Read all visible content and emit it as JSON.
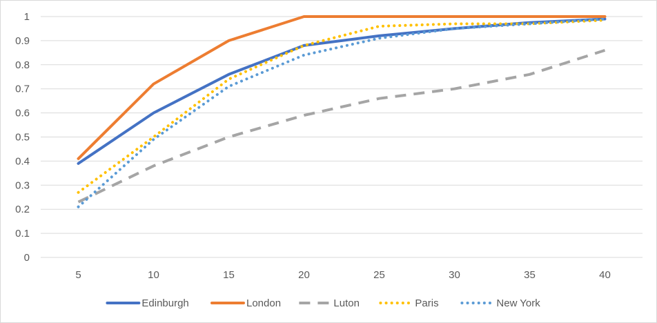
{
  "chart_data": {
    "type": "line",
    "title": "",
    "xlabel": "",
    "ylabel": "",
    "x": [
      5,
      10,
      15,
      20,
      25,
      30,
      35,
      40
    ],
    "ylim": [
      0,
      1
    ],
    "yticks": [
      "0",
      "0.1",
      "0.2",
      "0.3",
      "0.4",
      "0.5",
      "0.6",
      "0.7",
      "0.8",
      "0.9",
      "1"
    ],
    "xticks": [
      "5",
      "10",
      "15",
      "20",
      "25",
      "30",
      "35",
      "40"
    ],
    "grid": true,
    "legend_position": "bottom",
    "series": [
      {
        "name": "Edinburgh",
        "color": "#4472c4",
        "style": "solid",
        "values": [
          0.39,
          0.6,
          0.76,
          0.88,
          0.92,
          0.95,
          0.975,
          0.99
        ]
      },
      {
        "name": "London",
        "color": "#ed7d31",
        "style": "solid",
        "values": [
          0.41,
          0.72,
          0.9,
          1.0,
          1.0,
          1.0,
          1.0,
          1.0
        ]
      },
      {
        "name": "Luton",
        "color": "#a5a5a5",
        "style": "dashed",
        "values": [
          0.23,
          0.38,
          0.5,
          0.59,
          0.66,
          0.7,
          0.76,
          0.86
        ]
      },
      {
        "name": "Paris",
        "color": "#ffc000",
        "style": "dotted",
        "values": [
          0.27,
          0.5,
          0.74,
          0.88,
          0.96,
          0.97,
          0.97,
          0.985
        ]
      },
      {
        "name": "New York",
        "color": "#5b9bd5",
        "style": "dotted",
        "values": [
          0.21,
          0.49,
          0.71,
          0.84,
          0.91,
          0.95,
          0.97,
          0.99
        ]
      }
    ]
  }
}
